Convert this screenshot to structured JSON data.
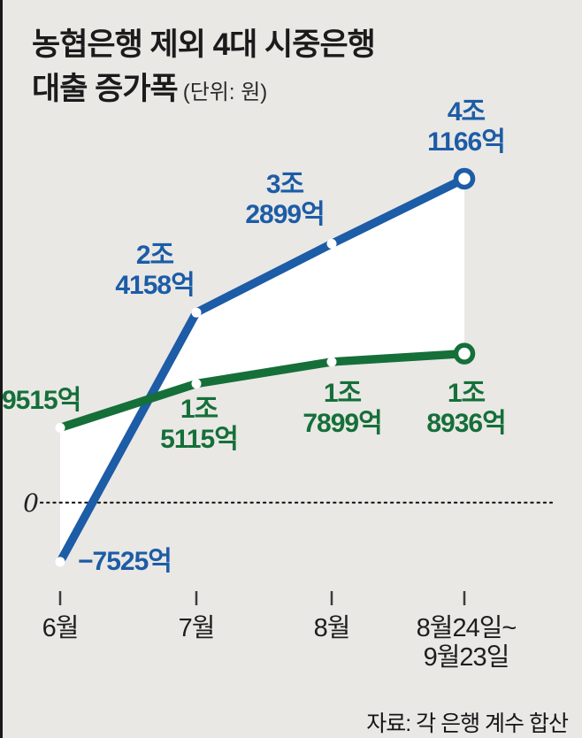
{
  "header": {
    "title_line1": "농협은행 제외 4대 시중은행",
    "title_line2": "대출 증가폭",
    "unit": "(단위: 원)"
  },
  "source": "자료: 각 은행 계수 합산",
  "colors": {
    "background": "#e9e8e5",
    "blue": "#1d5ca6",
    "green": "#156f39",
    "band": "#ffffff",
    "axis": "#3c3c3c",
    "zero_line": "#222222"
  },
  "chart_data": {
    "type": "line",
    "title": "농협은행 제외 4대 시중은행 대출 증가폭",
    "unit_note": "단위: 원",
    "categories": [
      "6월",
      "7월",
      "8월",
      "8월24일~\n9월23일"
    ],
    "zero_label": "0",
    "baseline": 0,
    "grid": "dotted-zero-line",
    "legend_position": "none",
    "y_unit": "억 원",
    "series": [
      {
        "name": "blue-series",
        "color": "#1d5ca6",
        "values_eok": [
          -7525,
          24158,
          32899,
          41166
        ],
        "labels": [
          "−7525억",
          "2조\n4158억",
          "3조\n2899억",
          "4조\n1166억"
        ]
      },
      {
        "name": "green-series",
        "color": "#156f39",
        "values_eok": [
          9515,
          15115,
          17899,
          18936
        ],
        "labels": [
          "9515억",
          "1조\n5115억",
          "1조\n7899억",
          "1조\n8936억"
        ]
      }
    ]
  }
}
